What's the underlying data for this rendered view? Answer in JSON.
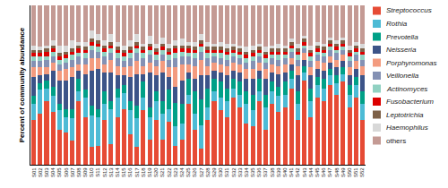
{
  "chart_data": {
    "type": "bar",
    "stacked": true,
    "y_label": "Percent of community abundance",
    "ylim": [
      0,
      1
    ],
    "tick_labels": "x",
    "legend": "right",
    "categories": [
      "S01",
      "S02",
      "S03",
      "S04",
      "S05",
      "S06",
      "S07",
      "S08",
      "S09",
      "S10",
      "S11",
      "S12",
      "S13",
      "S14",
      "S15",
      "S16",
      "S17",
      "S18",
      "S19",
      "S20",
      "S21",
      "S22",
      "S23",
      "S24",
      "S25",
      "S26",
      "S27",
      "S28",
      "S29",
      "S30",
      "S31",
      "S32",
      "S33",
      "S34",
      "S35",
      "S36",
      "S37",
      "S38",
      "S39",
      "S40",
      "S41",
      "S42",
      "S43",
      "S44",
      "S45",
      "S46",
      "S47",
      "S48",
      "S49",
      "S50",
      "S51",
      "S52"
    ],
    "series": [
      {
        "name": "Streptococcus",
        "color": "#e64b35",
        "values": [
          0.28,
          0.32,
          0.4,
          0.33,
          0.22,
          0.2,
          0.15,
          0.4,
          0.3,
          0.11,
          0.12,
          0.28,
          0.13,
          0.3,
          0.35,
          0.19,
          0.11,
          0.34,
          0.16,
          0.28,
          0.16,
          0.27,
          0.12,
          0.16,
          0.38,
          0.22,
          0.1,
          0.28,
          0.4,
          0.34,
          0.3,
          0.42,
          0.36,
          0.26,
          0.24,
          0.4,
          0.22,
          0.38,
          0.33,
          0.36,
          0.48,
          0.28,
          0.53,
          0.3,
          0.42,
          0.4,
          0.5,
          0.44,
          0.52,
          0.36,
          0.42,
          0.28
        ]
      },
      {
        "name": "Rothia",
        "color": "#4dbbd5",
        "values": [
          0.1,
          0.15,
          0.08,
          0.1,
          0.12,
          0.1,
          0.14,
          0.06,
          0.12,
          0.2,
          0.18,
          0.1,
          0.22,
          0.12,
          0.1,
          0.15,
          0.18,
          0.08,
          0.14,
          0.12,
          0.16,
          0.08,
          0.12,
          0.1,
          0.06,
          0.1,
          0.15,
          0.08,
          0.06,
          0.08,
          0.1,
          0.06,
          0.08,
          0.12,
          0.1,
          0.06,
          0.14,
          0.08,
          0.1,
          0.08,
          0.06,
          0.1,
          0.05,
          0.1,
          0.08,
          0.08,
          0.06,
          0.07,
          0.05,
          0.08,
          0.08,
          0.1
        ]
      },
      {
        "name": "Prevotella",
        "color": "#00a087",
        "values": [
          0.05,
          0.04,
          0.05,
          0.06,
          0.04,
          0.05,
          0.06,
          0.08,
          0.05,
          0.06,
          0.05,
          0.08,
          0.05,
          0.06,
          0.05,
          0.06,
          0.08,
          0.1,
          0.06,
          0.06,
          0.08,
          0.12,
          0.15,
          0.12,
          0.1,
          0.14,
          0.16,
          0.12,
          0.08,
          0.1,
          0.08,
          0.06,
          0.08,
          0.08,
          0.1,
          0.08,
          0.08,
          0.06,
          0.06,
          0.08,
          0.05,
          0.08,
          0.04,
          0.08,
          0.05,
          0.06,
          0.04,
          0.05,
          0.04,
          0.06,
          0.05,
          0.08
        ]
      },
      {
        "name": "Neisseria",
        "color": "#3c5488",
        "values": [
          0.12,
          0.05,
          0.04,
          0.1,
          0.15,
          0.18,
          0.2,
          0.05,
          0.1,
          0.22,
          0.25,
          0.12,
          0.18,
          0.08,
          0.06,
          0.15,
          0.2,
          0.05,
          0.22,
          0.1,
          0.18,
          0.08,
          0.1,
          0.15,
          0.04,
          0.08,
          0.15,
          0.08,
          0.05,
          0.06,
          0.08,
          0.05,
          0.06,
          0.08,
          0.1,
          0.05,
          0.1,
          0.06,
          0.08,
          0.06,
          0.04,
          0.1,
          0.04,
          0.08,
          0.05,
          0.05,
          0.04,
          0.05,
          0.04,
          0.06,
          0.05,
          0.1
        ]
      },
      {
        "name": "Porphyromonas",
        "color": "#f39b7f",
        "values": [
          0.06,
          0.05,
          0.04,
          0.05,
          0.06,
          0.07,
          0.06,
          0.04,
          0.06,
          0.08,
          0.07,
          0.05,
          0.08,
          0.06,
          0.05,
          0.07,
          0.08,
          0.05,
          0.06,
          0.06,
          0.07,
          0.06,
          0.12,
          0.1,
          0.05,
          0.08,
          0.1,
          0.06,
          0.05,
          0.05,
          0.06,
          0.05,
          0.05,
          0.06,
          0.06,
          0.05,
          0.06,
          0.05,
          0.05,
          0.05,
          0.04,
          0.06,
          0.04,
          0.05,
          0.05,
          0.05,
          0.04,
          0.05,
          0.04,
          0.05,
          0.05,
          0.06
        ]
      },
      {
        "name": "Veillonella",
        "color": "#8491b4",
        "values": [
          0.04,
          0.04,
          0.05,
          0.04,
          0.04,
          0.04,
          0.05,
          0.05,
          0.04,
          0.05,
          0.04,
          0.05,
          0.04,
          0.05,
          0.04,
          0.05,
          0.05,
          0.05,
          0.05,
          0.04,
          0.04,
          0.05,
          0.06,
          0.05,
          0.05,
          0.05,
          0.05,
          0.05,
          0.04,
          0.04,
          0.04,
          0.04,
          0.04,
          0.04,
          0.05,
          0.04,
          0.04,
          0.04,
          0.04,
          0.04,
          0.04,
          0.04,
          0.03,
          0.04,
          0.04,
          0.04,
          0.04,
          0.04,
          0.03,
          0.04,
          0.04,
          0.04
        ]
      },
      {
        "name": "Actinomyces",
        "color": "#91d1c2",
        "values": [
          0.03,
          0.03,
          0.02,
          0.03,
          0.03,
          0.03,
          0.03,
          0.02,
          0.03,
          0.03,
          0.03,
          0.03,
          0.03,
          0.03,
          0.03,
          0.03,
          0.03,
          0.03,
          0.03,
          0.03,
          0.03,
          0.03,
          0.03,
          0.03,
          0.02,
          0.03,
          0.03,
          0.03,
          0.02,
          0.03,
          0.03,
          0.02,
          0.02,
          0.03,
          0.03,
          0.02,
          0.03,
          0.02,
          0.03,
          0.02,
          0.02,
          0.03,
          0.02,
          0.03,
          0.02,
          0.02,
          0.02,
          0.02,
          0.02,
          0.03,
          0.02,
          0.03
        ]
      },
      {
        "name": "Fusobacterium",
        "color": "#dc0000",
        "values": [
          0.02,
          0.02,
          0.03,
          0.02,
          0.02,
          0.02,
          0.02,
          0.03,
          0.02,
          0.02,
          0.02,
          0.02,
          0.02,
          0.02,
          0.02,
          0.02,
          0.02,
          0.02,
          0.02,
          0.02,
          0.02,
          0.02,
          0.03,
          0.02,
          0.03,
          0.02,
          0.02,
          0.02,
          0.02,
          0.02,
          0.02,
          0.02,
          0.02,
          0.02,
          0.02,
          0.02,
          0.02,
          0.02,
          0.02,
          0.02,
          0.02,
          0.02,
          0.02,
          0.02,
          0.02,
          0.02,
          0.02,
          0.02,
          0.02,
          0.02,
          0.02,
          0.02
        ]
      },
      {
        "name": "Leptotrichia",
        "color": "#7e6148",
        "values": [
          0.02,
          0.02,
          0.02,
          0.02,
          0.02,
          0.02,
          0.02,
          0.02,
          0.02,
          0.02,
          0.02,
          0.02,
          0.02,
          0.02,
          0.02,
          0.02,
          0.02,
          0.02,
          0.02,
          0.02,
          0.02,
          0.02,
          0.02,
          0.02,
          0.02,
          0.02,
          0.02,
          0.02,
          0.02,
          0.02,
          0.02,
          0.02,
          0.02,
          0.02,
          0.02,
          0.02,
          0.02,
          0.02,
          0.02,
          0.02,
          0.02,
          0.02,
          0.02,
          0.02,
          0.02,
          0.02,
          0.02,
          0.02,
          0.02,
          0.02,
          0.02,
          0.02
        ]
      },
      {
        "name": "Haemophilus",
        "color": "#d8d8d8",
        "values": [
          0.03,
          0.02,
          0.02,
          0.03,
          0.05,
          0.04,
          0.05,
          0.02,
          0.03,
          0.05,
          0.04,
          0.03,
          0.05,
          0.03,
          0.03,
          0.04,
          0.05,
          0.02,
          0.05,
          0.03,
          0.04,
          0.03,
          0.03,
          0.04,
          0.02,
          0.03,
          0.04,
          0.03,
          0.02,
          0.03,
          0.03,
          0.02,
          0.02,
          0.03,
          0.03,
          0.02,
          0.03,
          0.02,
          0.03,
          0.02,
          0.02,
          0.03,
          0.02,
          0.03,
          0.02,
          0.02,
          0.02,
          0.02,
          0.02,
          0.03,
          0.02,
          0.03
        ]
      },
      {
        "name": "others",
        "color": "#c49a94",
        "values": [
          0.25,
          0.26,
          0.25,
          0.22,
          0.25,
          0.25,
          0.22,
          0.23,
          0.23,
          0.16,
          0.18,
          0.22,
          0.18,
          0.23,
          0.25,
          0.22,
          0.18,
          0.24,
          0.19,
          0.24,
          0.2,
          0.24,
          0.22,
          0.21,
          0.23,
          0.23,
          0.18,
          0.23,
          0.24,
          0.23,
          0.24,
          0.24,
          0.25,
          0.26,
          0.25,
          0.24,
          0.26,
          0.25,
          0.24,
          0.25,
          0.21,
          0.24,
          0.19,
          0.25,
          0.23,
          0.24,
          0.2,
          0.22,
          0.2,
          0.25,
          0.23,
          0.24
        ]
      }
    ]
  }
}
